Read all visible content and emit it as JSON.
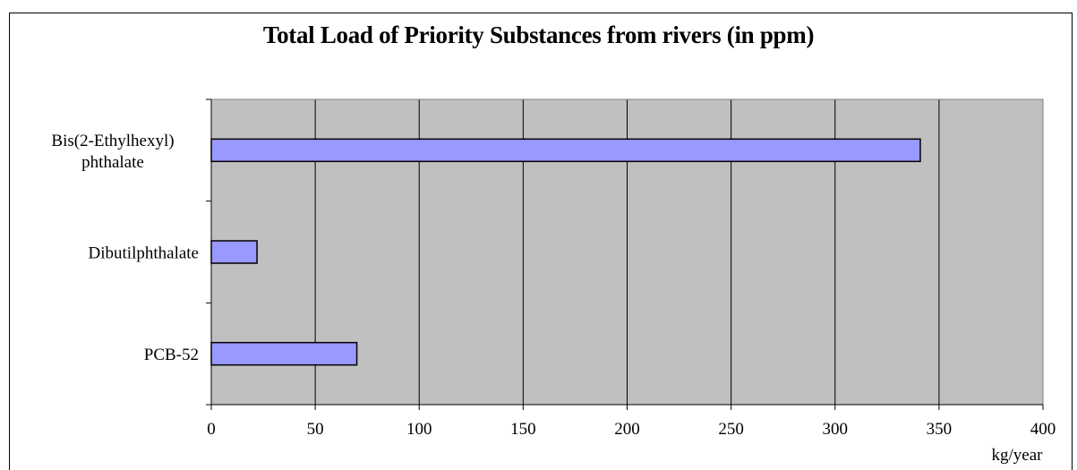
{
  "chart_data": {
    "type": "bar",
    "orientation": "horizontal",
    "title": "Total  Load of Priority Substances from rivers (in ppm)",
    "xlabel": "kg/year",
    "ylabel": "",
    "categories": [
      "Bis(2-Ethylhexyl) phthalate",
      "Dibutilphthalate",
      "PCB-52"
    ],
    "category_lines": [
      [
        "Bis(2-Ethylhexyl)",
        "phthalate"
      ],
      [
        "Dibutilphthalate"
      ],
      [
        "PCB-52"
      ]
    ],
    "values": [
      341,
      22,
      70
    ],
    "xlim": [
      0,
      400
    ],
    "xticks": [
      0,
      50,
      100,
      150,
      200,
      250,
      300,
      350,
      400
    ],
    "grid": "vertical",
    "legend": "none",
    "colors": {
      "bar": "#9999ff",
      "plot_background": "#c0c0c0",
      "gridline": "#000000"
    }
  }
}
